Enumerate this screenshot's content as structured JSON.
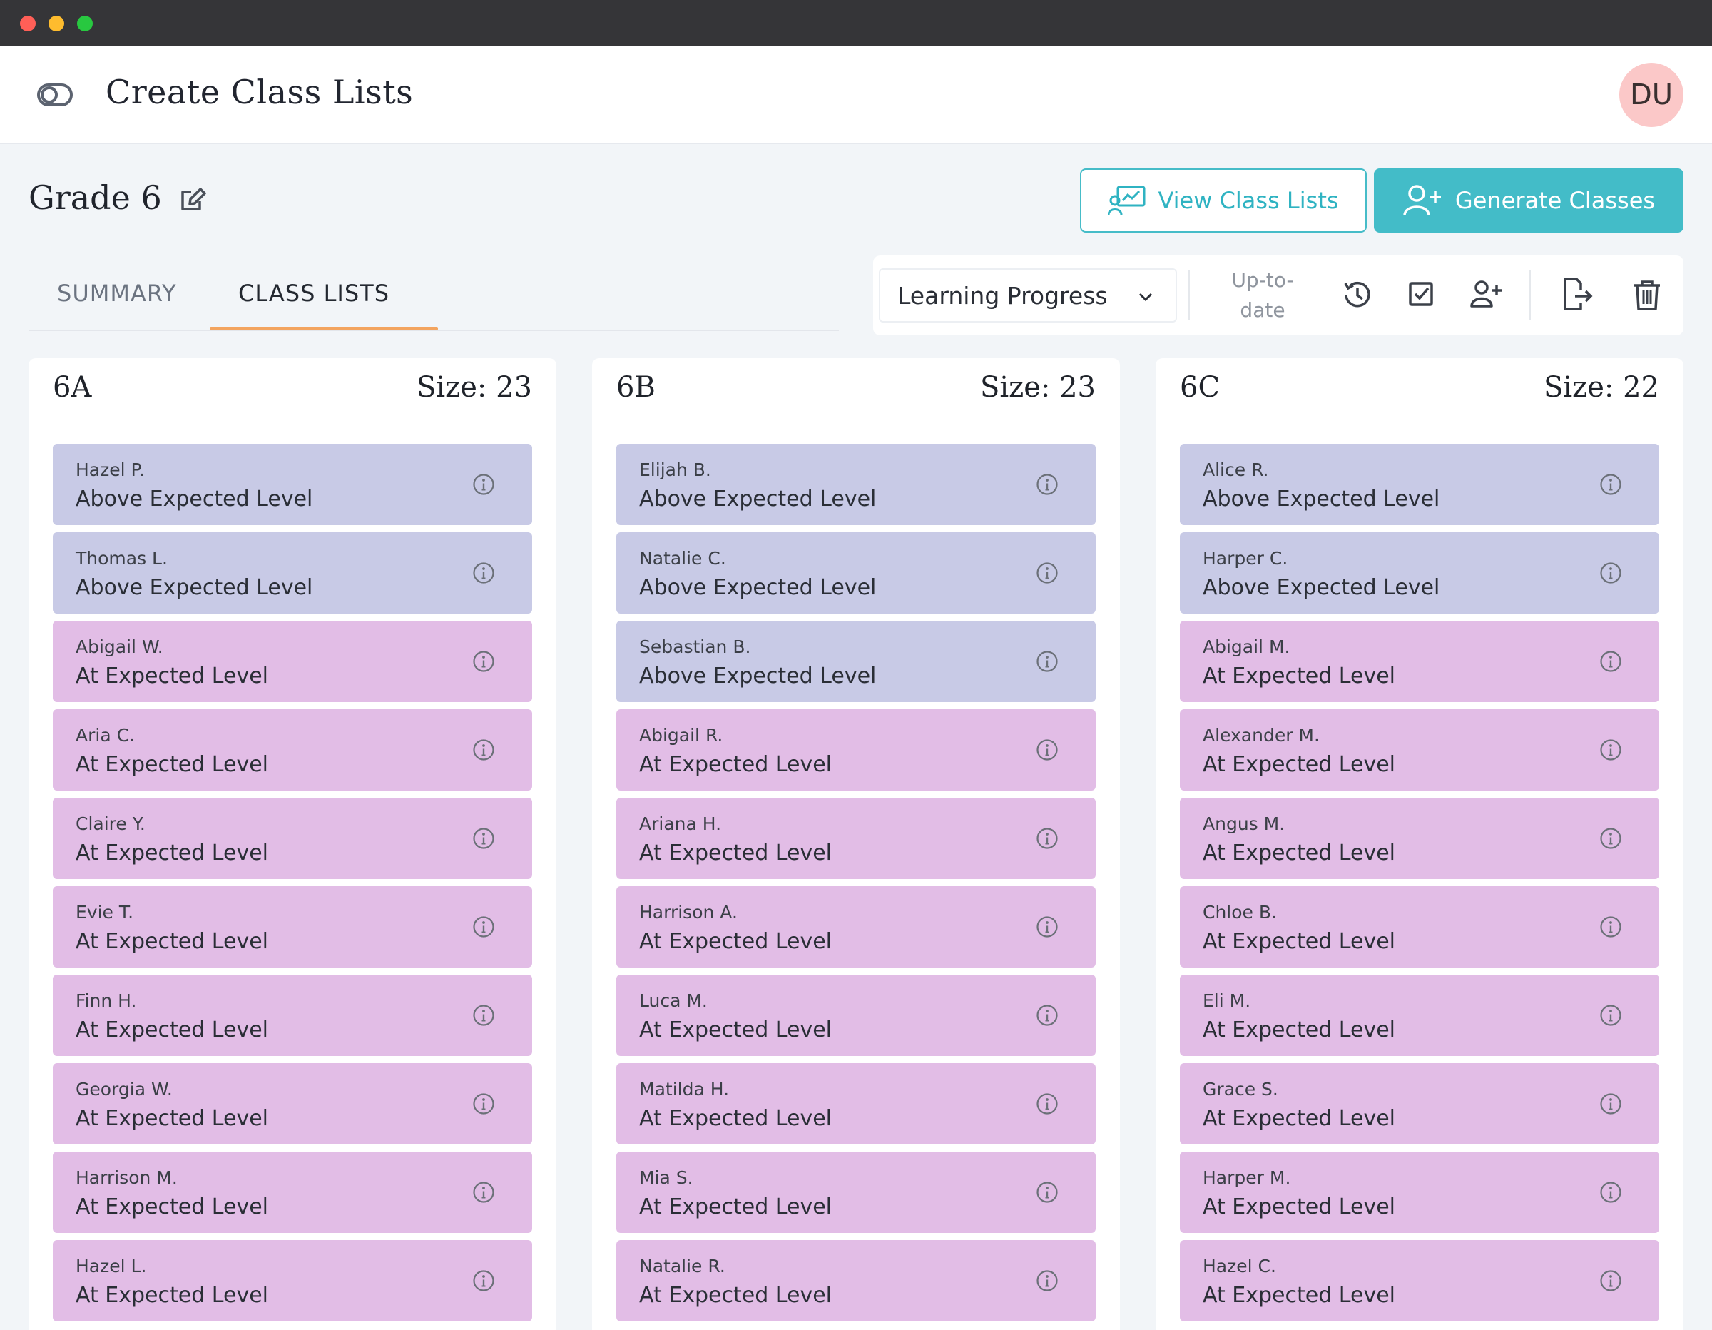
{
  "app": {
    "title": "Create Class Lists",
    "avatar_initials": "DU"
  },
  "page": {
    "title": "Grade 6"
  },
  "actions": {
    "view_class_lists": "View Class Lists",
    "generate_classes": "Generate Classes"
  },
  "tabs": [
    {
      "label": "SUMMARY",
      "active": false
    },
    {
      "label": "CLASS LISTS",
      "active": true
    }
  ],
  "toolbar": {
    "filter_selected": "Learning Progress",
    "status_line1": "Up-to-",
    "status_line2": "date"
  },
  "colors": {
    "accent": "#43bcc8",
    "tab_underline": "#f3a45f",
    "above_level": "#c8cae6",
    "at_level": "#e2bde6",
    "avatar": "#fbc8c8"
  },
  "classes": [
    {
      "name": "6A",
      "size_label": "Size: 23",
      "students": [
        {
          "name": "Hazel P.",
          "level": "Above Expected Level"
        },
        {
          "name": "Thomas L.",
          "level": "Above Expected Level"
        },
        {
          "name": "Abigail W.",
          "level": "At Expected Level"
        },
        {
          "name": "Aria C.",
          "level": "At Expected Level"
        },
        {
          "name": "Claire Y.",
          "level": "At Expected Level"
        },
        {
          "name": "Evie T.",
          "level": "At Expected Level"
        },
        {
          "name": "Finn H.",
          "level": "At Expected Level"
        },
        {
          "name": "Georgia W.",
          "level": "At Expected Level"
        },
        {
          "name": "Harrison M.",
          "level": "At Expected Level"
        },
        {
          "name": "Hazel L.",
          "level": "At Expected Level"
        }
      ]
    },
    {
      "name": "6B",
      "size_label": "Size: 23",
      "students": [
        {
          "name": "Elijah B.",
          "level": "Above Expected Level"
        },
        {
          "name": "Natalie C.",
          "level": "Above Expected Level"
        },
        {
          "name": "Sebastian B.",
          "level": "Above Expected Level"
        },
        {
          "name": "Abigail R.",
          "level": "At Expected Level"
        },
        {
          "name": "Ariana H.",
          "level": "At Expected Level"
        },
        {
          "name": "Harrison A.",
          "level": "At Expected Level"
        },
        {
          "name": "Luca M.",
          "level": "At Expected Level"
        },
        {
          "name": "Matilda H.",
          "level": "At Expected Level"
        },
        {
          "name": "Mia S.",
          "level": "At Expected Level"
        },
        {
          "name": "Natalie R.",
          "level": "At Expected Level"
        }
      ]
    },
    {
      "name": "6C",
      "size_label": "Size: 22",
      "students": [
        {
          "name": "Alice R.",
          "level": "Above Expected Level"
        },
        {
          "name": "Harper C.",
          "level": "Above Expected Level"
        },
        {
          "name": "Abigail M.",
          "level": "At Expected Level"
        },
        {
          "name": "Alexander M.",
          "level": "At Expected Level"
        },
        {
          "name": "Angus M.",
          "level": "At Expected Level"
        },
        {
          "name": "Chloe B.",
          "level": "At Expected Level"
        },
        {
          "name": "Eli M.",
          "level": "At Expected Level"
        },
        {
          "name": "Grace S.",
          "level": "At Expected Level"
        },
        {
          "name": "Harper M.",
          "level": "At Expected Level"
        },
        {
          "name": "Hazel C.",
          "level": "At Expected Level"
        }
      ]
    }
  ]
}
